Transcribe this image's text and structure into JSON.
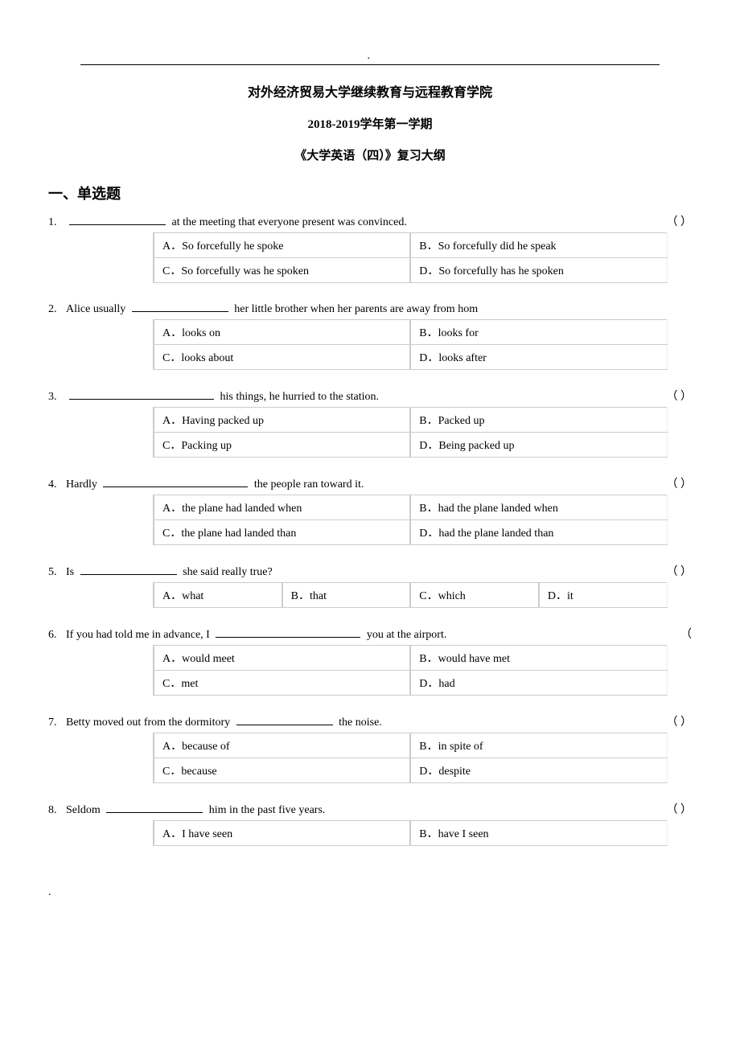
{
  "header": {
    "title_main": "对外经济贸易大学继续教育与远程教育学院",
    "title_sub": "2018-2019学年第一学期",
    "title_course": "《大学英语（四）》复习大纲"
  },
  "section_title": "一、单选题",
  "questions": [
    {
      "num": "1.",
      "stem_before": "",
      "stem_after": " at the meeting that everyone present was convinced.",
      "paren": "（        ）",
      "blank_pos": "start",
      "opts": [
        [
          "A．So forcefully he spoke",
          "B．So forcefully did he speak"
        ],
        [
          "C．So forcefully was he spoken",
          "D．So forcefully has he spoken"
        ]
      ]
    },
    {
      "num": "2.",
      "stem_before": "Alice usually   ",
      "stem_after": "   her little brother when her parents are away from hom",
      "paren": "",
      "blank_pos": "mid",
      "opts": [
        [
          "A．looks on",
          "B．looks for"
        ],
        [
          "C．looks about",
          "D．looks after"
        ]
      ]
    },
    {
      "num": "3.",
      "stem_before": "",
      "stem_after": " his things, he hurried to the station.",
      "paren": "（        ）",
      "blank_pos": "start",
      "blank_long": true,
      "opts": [
        [
          "A．Having packed up",
          "B．Packed up"
        ],
        [
          "C．Packing up",
          "D．Being packed up"
        ]
      ]
    },
    {
      "num": "4.",
      "stem_before": "Hardly   ",
      "stem_after": "   the people ran toward it.",
      "paren": "（        ）",
      "blank_pos": "mid",
      "blank_long": true,
      "opts": [
        [
          "A．the plane had landed when",
          "B．had the plane landed when"
        ],
        [
          "C．the plane had landed than",
          "D．had the plane landed than"
        ]
      ]
    },
    {
      "num": "5.",
      "stem_before": "Is   ",
      "stem_after": "   she said really true?",
      "paren": "（        ）",
      "blank_pos": "mid",
      "opts4": [
        "A．what",
        "B．that",
        "C．which",
        "D．it"
      ]
    },
    {
      "num": "6.",
      "stem_before": "If you had told me in advance, I     ",
      "stem_after": "     you at the airport.",
      "paren": "（",
      "blank_pos": "mid",
      "blank_long": true,
      "opts": [
        [
          "A．would meet",
          "B．would have met"
        ],
        [
          "C．met",
          "D．had"
        ]
      ]
    },
    {
      "num": "7.",
      "stem_before": "Betty moved out from the dormitory      ",
      "stem_after": "    the noise.",
      "paren": "（        ）",
      "blank_pos": "mid",
      "opts": [
        [
          "A．because of",
          "B．in spite of"
        ],
        [
          "C．because",
          "D．despite"
        ]
      ]
    },
    {
      "num": "8.",
      "stem_before": "  Seldom   ",
      "stem_after": "   him in the past five years.",
      "paren": "（        ）",
      "blank_pos": "mid",
      "opts": [
        [
          "A．I have seen",
          "B．have I seen"
        ]
      ]
    }
  ],
  "style": {
    "border_color": "#cccccc",
    "text_color": "#000000",
    "bg_color": "#ffffff"
  }
}
